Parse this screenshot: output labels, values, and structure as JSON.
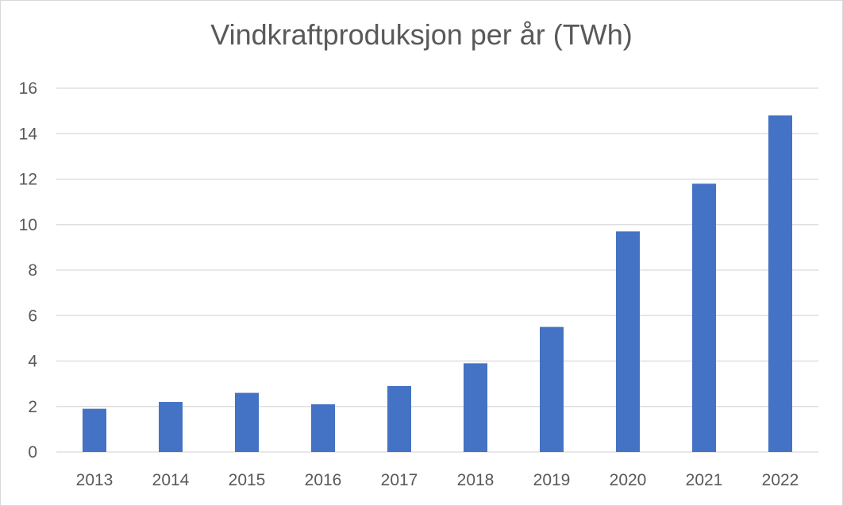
{
  "chart_data": {
    "type": "bar",
    "title": "Vindkraftproduksjon per år (TWh)",
    "xlabel": "",
    "ylabel": "",
    "categories": [
      "2013",
      "2014",
      "2015",
      "2016",
      "2017",
      "2018",
      "2019",
      "2020",
      "2021",
      "2022"
    ],
    "values": [
      1.9,
      2.2,
      2.6,
      2.1,
      2.9,
      3.9,
      5.5,
      9.7,
      11.8,
      14.8
    ],
    "ylim": [
      0,
      16
    ],
    "yticks": [
      "0",
      "2",
      "4",
      "6",
      "8",
      "10",
      "12",
      "14",
      "16"
    ],
    "grid": true,
    "legend": "none",
    "bar_color": "#4472C4",
    "grid_color": "#d9d9d9"
  }
}
